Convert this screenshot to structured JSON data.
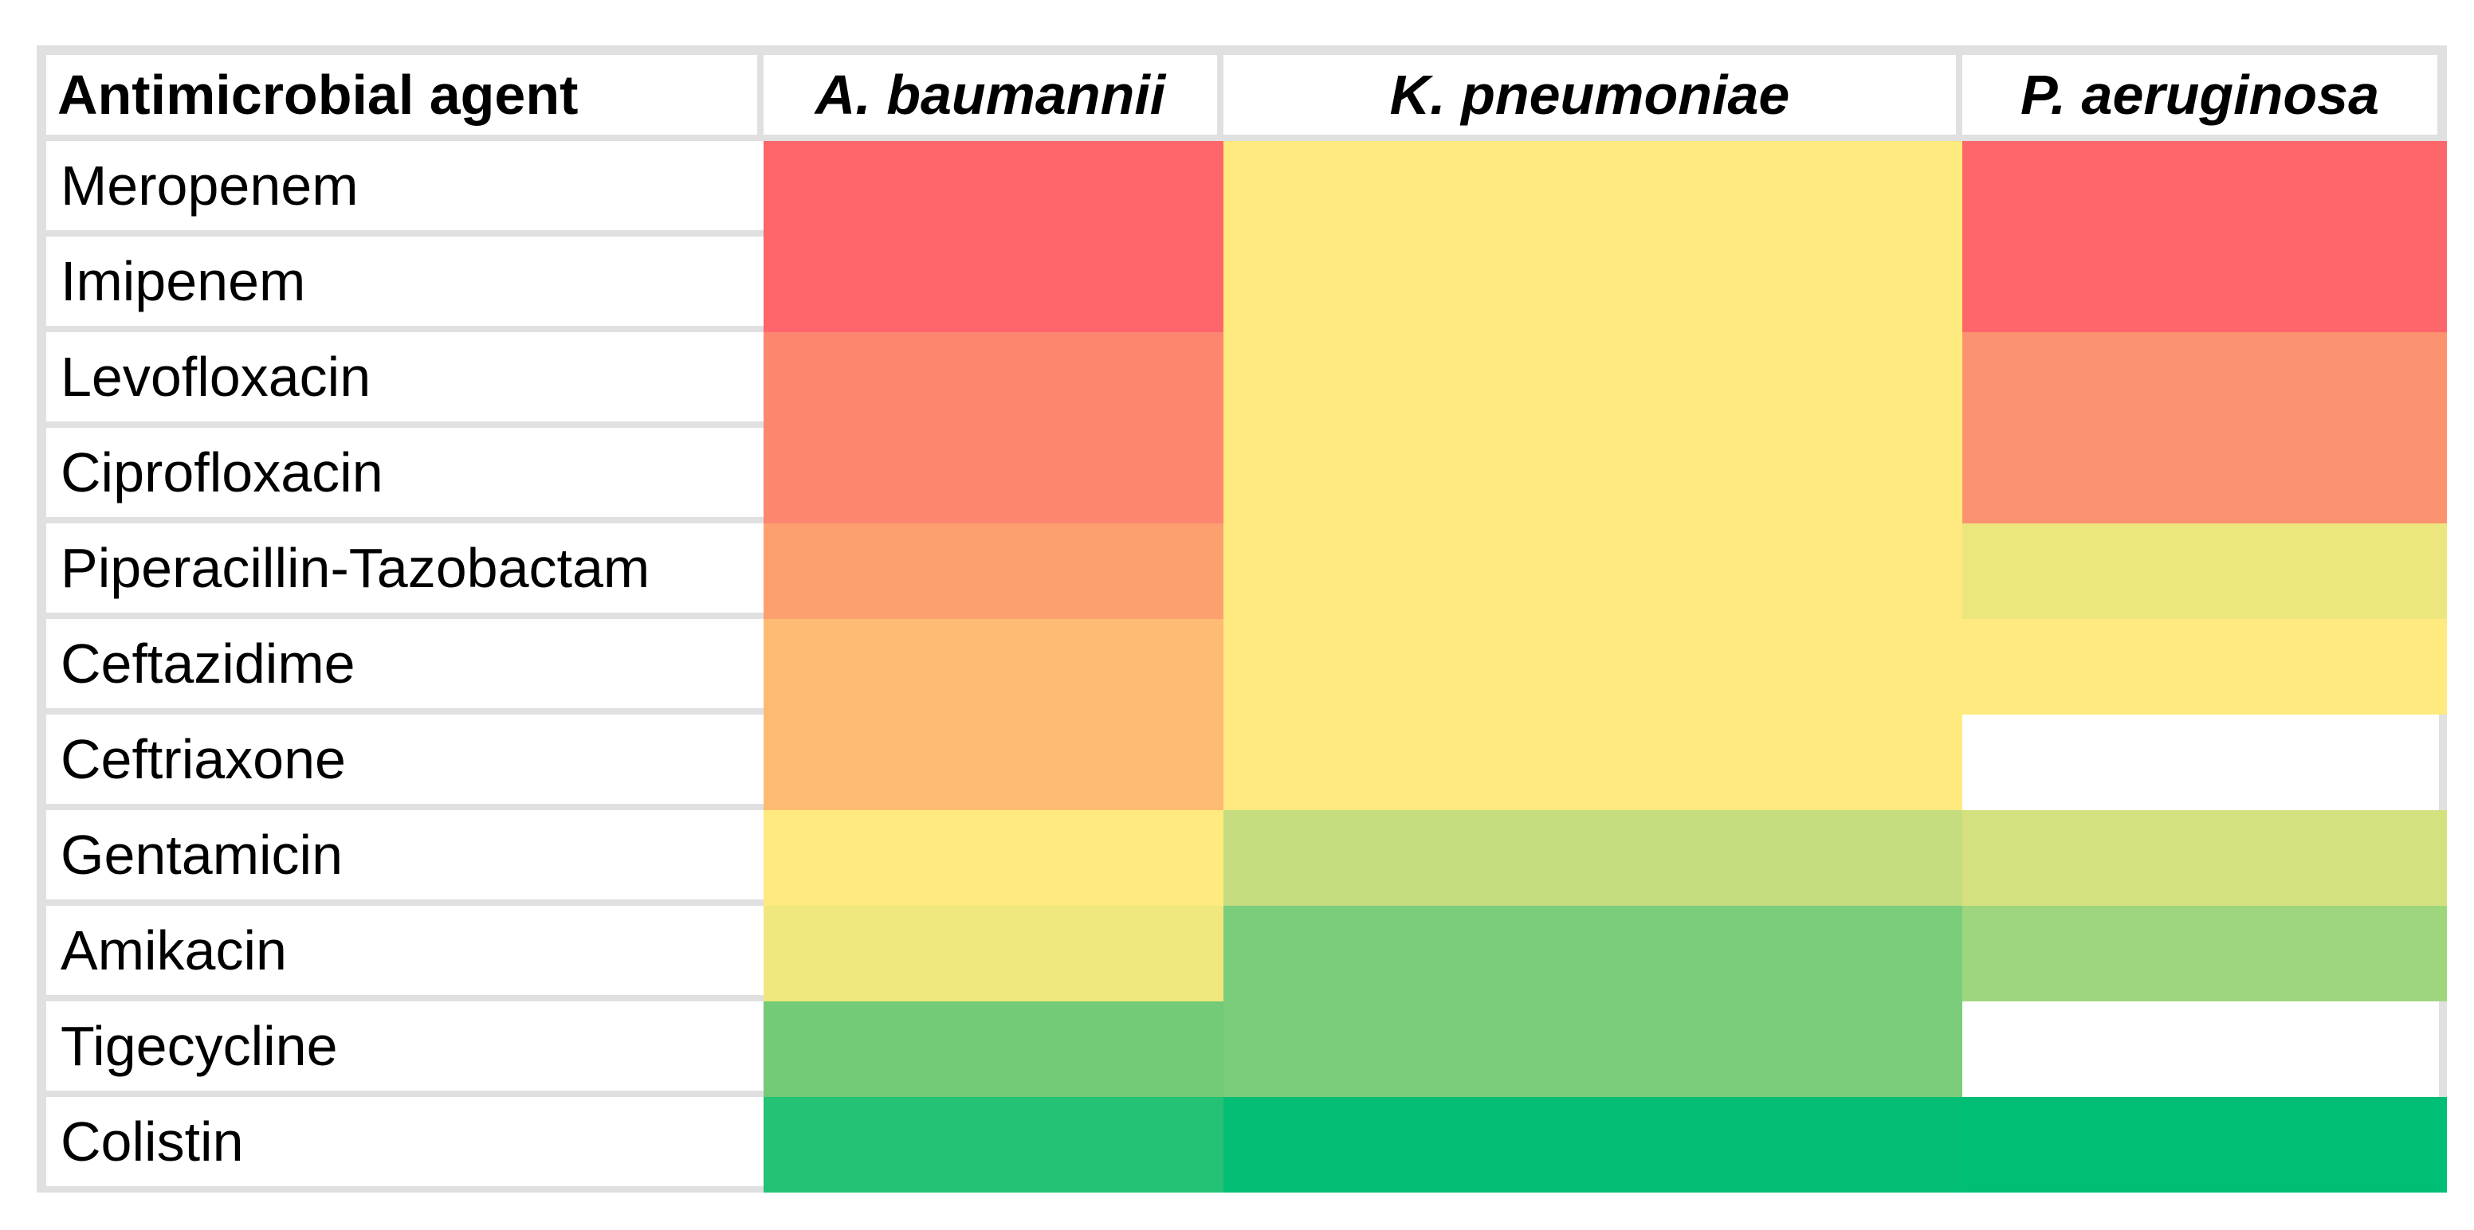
{
  "table": {
    "corner_label": "Antimicrobial agent"
  },
  "layout_colors": {
    "background": "#FFFFFF",
    "grid_line": "#E0E0E0",
    "text": "#000000"
  },
  "chart_data": {
    "type": "heatmap",
    "title": "",
    "columns": [
      "A. baumannii",
      "K. pneumoniae",
      "P. aeruginosa"
    ],
    "rows": [
      "Meropenem",
      "Imipenem",
      "Levofloxacin",
      "Ciprofloxacin",
      "Piperacillin-Tazobactam",
      "Ceftazidime",
      "Ceftriaxone",
      "Gentamicin",
      "Amikacin",
      "Tigecycline",
      "Colistin"
    ],
    "cell_colors": [
      [
        "#FD666B",
        "#FFEA7F",
        "#FD666B"
      ],
      [
        "#FD666B",
        "#FFEA7F",
        "#FD666B"
      ],
      [
        "#FC8670",
        "#FFEA7F",
        "#FB9370"
      ],
      [
        "#FC8670",
        "#FFEA7F",
        "#FB9370"
      ],
      [
        "#FCA06F",
        "#FFEA7F",
        "#ECE67E"
      ],
      [
        "#FEBB74",
        "#FFEA7F",
        "#FFEA7F"
      ],
      [
        "#FEBB74",
        "#FFEA7F",
        null
      ],
      [
        "#FFEA7F",
        "#C5DD7E",
        "#D5E07E"
      ],
      [
        "#F0E87E",
        "#7ACD7B",
        "#9ED67E"
      ],
      [
        "#73CB78",
        "#7ACD7B",
        null
      ],
      [
        "#23C274",
        "#04BE73",
        "#00BE73"
      ]
    ],
    "value_encoding": "color scale from red (high) through yellow to green (low); blank white cell = no value shown",
    "color_scale": {
      "red_end": "#FD666B",
      "yellow_mid": "#FFEA7F",
      "green_end": "#00BE73",
      "no_data": "#FFFFFF"
    },
    "legend": "none shown",
    "grid_lines": "visible only around unfilled (white) cells"
  }
}
